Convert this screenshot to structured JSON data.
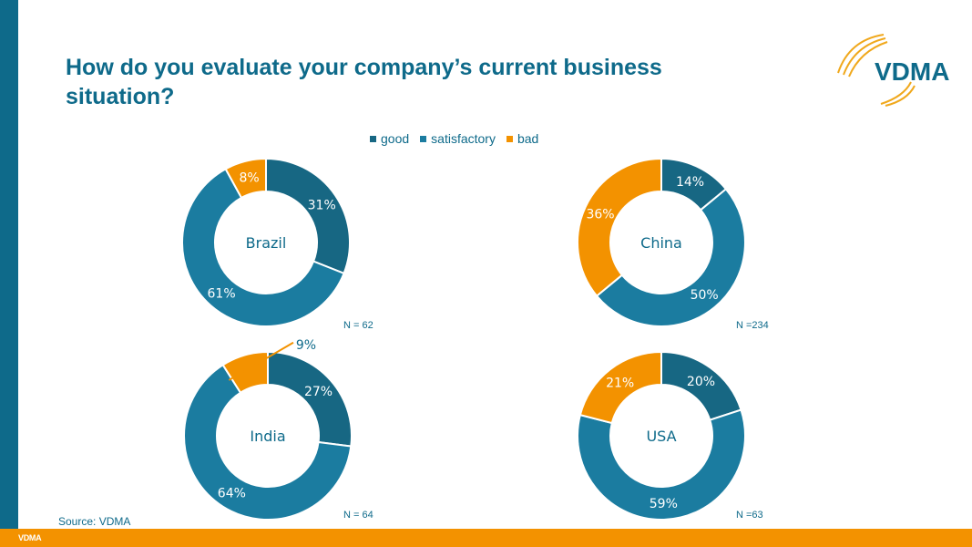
{
  "title": "How do you evaluate your company’s current business situation?",
  "logo_text": "VDMA",
  "footer_logo": "VDMA",
  "source": "Source: VDMA",
  "colors": {
    "good": "#176783",
    "satisfactory": "#1b7ca0",
    "bad": "#f39200",
    "brand": "#0e6a8a"
  },
  "legend": [
    {
      "label": "good",
      "color": "#176783"
    },
    {
      "label": "satisfactory",
      "color": "#1b7ca0"
    },
    {
      "label": "bad",
      "color": "#f39200"
    }
  ],
  "chart_data": [
    {
      "type": "pie",
      "title": "Brazil",
      "sample": "N = 62",
      "categories": [
        "good",
        "satisfactory",
        "bad"
      ],
      "values": [
        31,
        61,
        8
      ],
      "labels": [
        "31%",
        "61%",
        "8%"
      ]
    },
    {
      "type": "pie",
      "title": "China",
      "sample": "N =234",
      "categories": [
        "good",
        "satisfactory",
        "bad"
      ],
      "values": [
        14,
        50,
        36
      ],
      "labels": [
        "14%",
        "50%",
        "36%"
      ]
    },
    {
      "type": "pie",
      "title": "India",
      "sample": "N = 64",
      "categories": [
        "good",
        "satisfactory",
        "bad"
      ],
      "values": [
        27,
        64,
        9
      ],
      "labels": [
        "27%",
        "64%",
        "9%"
      ]
    },
    {
      "type": "pie",
      "title": "USA",
      "sample": "N =63",
      "categories": [
        "good",
        "satisfactory",
        "bad"
      ],
      "values": [
        20,
        59,
        21
      ],
      "labels": [
        "20%",
        "59%",
        "21%"
      ]
    }
  ]
}
